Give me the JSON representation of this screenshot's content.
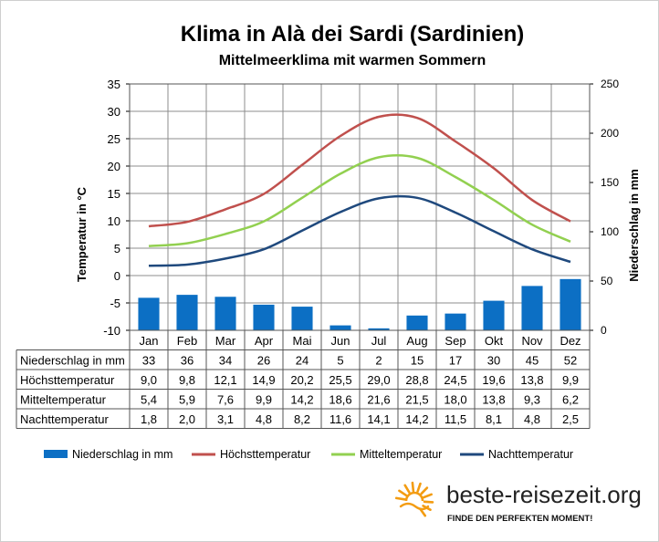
{
  "chart_data": {
    "type": "bar+line",
    "title": "Klima in Alà dei Sardi (Sardinien)",
    "subtitle": "Mittelmeerklima mit warmen Sommern",
    "categories": [
      "Jan",
      "Feb",
      "Mar",
      "Apr",
      "Mai",
      "Jun",
      "Jul",
      "Aug",
      "Sep",
      "Okt",
      "Nov",
      "Dez"
    ],
    "y_left": {
      "label": "Temperatur in °C",
      "range": [
        -10,
        35
      ],
      "ticks": [
        35,
        30,
        25,
        20,
        15,
        10,
        5,
        0,
        -5,
        -10
      ],
      "tick_labels": [
        "35",
        "30",
        "25",
        "20",
        "15",
        "10",
        "5",
        "0",
        "-5",
        "-10"
      ]
    },
    "y_right": {
      "label": "Niederschlag in mm",
      "range": [
        0,
        250
      ],
      "ticks": [
        250,
        200,
        150,
        100,
        50,
        0
      ],
      "tick_labels": [
        "250",
        "200",
        "150",
        "100",
        "50",
        "0"
      ]
    },
    "grid": true,
    "legend_position": "bottom",
    "series": [
      {
        "name": "Niederschlag in mm",
        "type": "bar",
        "axis": "right",
        "color": "#0c6fc4",
        "values": [
          33,
          36,
          34,
          26,
          24,
          5,
          2,
          15,
          17,
          30,
          45,
          52
        ],
        "labels": [
          "33",
          "36",
          "34",
          "26",
          "24",
          "5",
          "2",
          "15",
          "17",
          "30",
          "45",
          "52"
        ]
      },
      {
        "name": "Höchsttemperatur",
        "type": "line",
        "axis": "left",
        "color": "#c0504d",
        "values": [
          9.0,
          9.8,
          12.1,
          14.9,
          20.2,
          25.5,
          29.0,
          28.8,
          24.5,
          19.6,
          13.8,
          9.9
        ],
        "labels": [
          "9,0",
          "9,8",
          "12,1",
          "14,9",
          "20,2",
          "25,5",
          "29,0",
          "28,8",
          "24,5",
          "19,6",
          "13,8",
          "9,9"
        ]
      },
      {
        "name": "Mitteltemperatur",
        "type": "line",
        "axis": "left",
        "color": "#92d050",
        "values": [
          5.4,
          5.9,
          7.6,
          9.9,
          14.2,
          18.6,
          21.6,
          21.5,
          18.0,
          13.8,
          9.3,
          6.2
        ],
        "labels": [
          "5,4",
          "5,9",
          "7,6",
          "9,9",
          "14,2",
          "18,6",
          "21,6",
          "21,5",
          "18,0",
          "13,8",
          "9,3",
          "6,2"
        ]
      },
      {
        "name": "Nachttemperatur",
        "type": "line",
        "axis": "left",
        "color": "#1f497d",
        "values": [
          1.8,
          2.0,
          3.1,
          4.8,
          8.2,
          11.6,
          14.1,
          14.2,
          11.5,
          8.1,
          4.8,
          2.5
        ],
        "labels": [
          "1,8",
          "2,0",
          "3,1",
          "4,8",
          "8,2",
          "11,6",
          "14,1",
          "14,2",
          "11,5",
          "8,1",
          "4,8",
          "2,5"
        ]
      }
    ]
  },
  "branding": {
    "site": "beste-reisezeit.org",
    "slogan": "FINDE DEN PERFEKTEN MOMENT!",
    "sun_color": "#f39c12",
    "logo_icon": "sun-icon"
  }
}
